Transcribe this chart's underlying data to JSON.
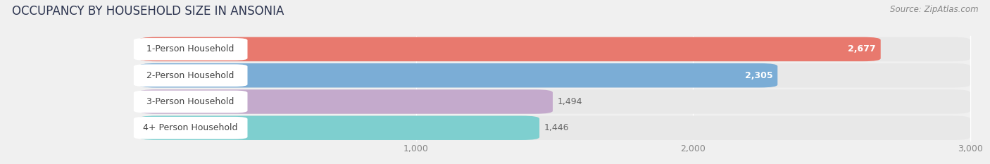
{
  "title": "OCCUPANCY BY HOUSEHOLD SIZE IN ANSONIA",
  "source": "Source: ZipAtlas.com",
  "categories": [
    "1-Person Household",
    "2-Person Household",
    "3-Person Household",
    "4+ Person Household"
  ],
  "values": [
    2677,
    2305,
    1494,
    1446
  ],
  "bar_colors": [
    "#E8796E",
    "#7BADD6",
    "#C4AACC",
    "#7ECFCF"
  ],
  "value_colors": [
    "white",
    "white",
    "#777777",
    "#777777"
  ],
  "label_text_colors": [
    "#555555",
    "#555555",
    "#555555",
    "#555555"
  ],
  "xlim": [
    0,
    3000
  ],
  "xtick_labels": [
    "1,000",
    "2,000",
    "3,000"
  ],
  "xtick_values": [
    1000,
    2000,
    3000
  ],
  "background_color": "#f0f0f0",
  "row_bg_color": "#ffffff",
  "row_inner_bg": "#e8e8e8",
  "grid_color": "#cccccc",
  "title_fontsize": 12,
  "source_fontsize": 8.5,
  "label_fontsize": 9,
  "value_fontsize": 9,
  "tick_fontsize": 9
}
